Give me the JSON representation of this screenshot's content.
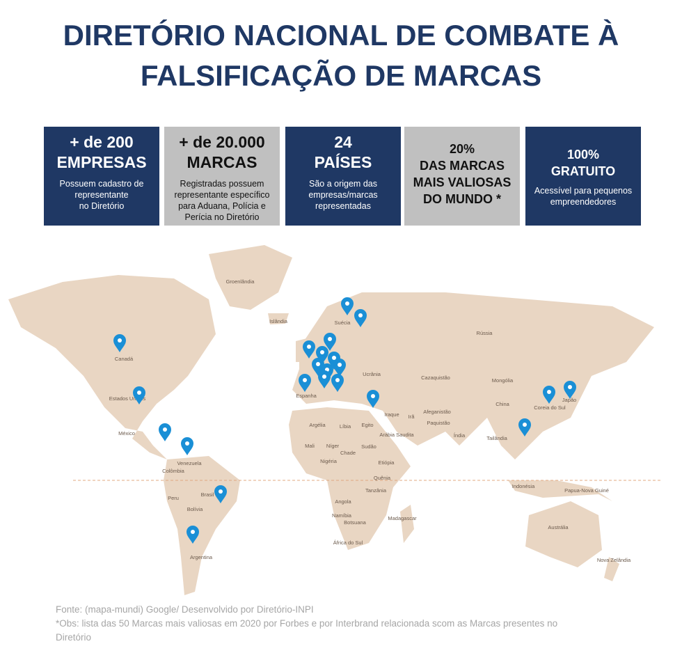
{
  "header": {
    "title": [
      "DIRETÓRIO NACIONAL DE COMBATE À",
      "FALSIFICAÇÃO DE MARCAS"
    ]
  },
  "cards": [
    {
      "headline": [
        "+ de 200",
        "EMPRESAS"
      ],
      "text": [
        "Possuem cadastro de",
        "representante",
        "no Diretório"
      ]
    },
    {
      "headline": [
        "+ de 20.000",
        "MARCAS"
      ],
      "text": [
        "Registradas possuem",
        "representante específico",
        "para Aduana, Polícia e",
        "Perícia no Diretório"
      ]
    },
    {
      "headline": [
        "24",
        "PAÍSES"
      ],
      "text": [
        "São a origem das",
        "empresas/marcas",
        "representadas"
      ]
    },
    {
      "headline": [
        "20%",
        "DAS MARCAS",
        "MAIS VALIOSAS",
        "DO MUNDO *"
      ],
      "text": []
    },
    {
      "headline": [
        "100%",
        "GRATUITO"
      ],
      "text": [
        "Acessível para pequenos",
        "empreendedores"
      ]
    }
  ],
  "map": {
    "labels": [
      "Groenlândia",
      "Islândia",
      "Suécia",
      "Rússia",
      "Canadá",
      "Ucrânia",
      "Cazaquistão",
      "Mongólia",
      "Estados Unidos",
      "Espanha",
      "China",
      "Coreia do Sul",
      "Japão",
      "Argélia",
      "Líbia",
      "Egito",
      "Iraque",
      "Irã",
      "Afeganistão",
      "Paquistão",
      "Arábia Saudita",
      "Índia",
      "Tailândia",
      "México",
      "Mali",
      "Níger",
      "Sudão",
      "Chade",
      "Nigéria",
      "Etiópia",
      "Venezuela",
      "Colômbia",
      "Quênia",
      "Tanzânia",
      "Indonésia",
      "Papua-Nova Guiné",
      "Peru",
      "Brasil",
      "Bolívia",
      "Angola",
      "Namíbia",
      "Botsuana",
      "Madagascar",
      "Austrália",
      "África do Sul",
      "Argentina",
      "Nova Zelândia"
    ]
  },
  "footer": {
    "lines": [
      "Fonte: (mapa-mundi) Google/ Desenvolvido por Diretório-INPI",
      "*Obs: lista das 50 Marcas mais valiosas em 2020 por Forbes e por Interbrand relacionada scom as Marcas presentes no",
      "Diretório"
    ]
  }
}
